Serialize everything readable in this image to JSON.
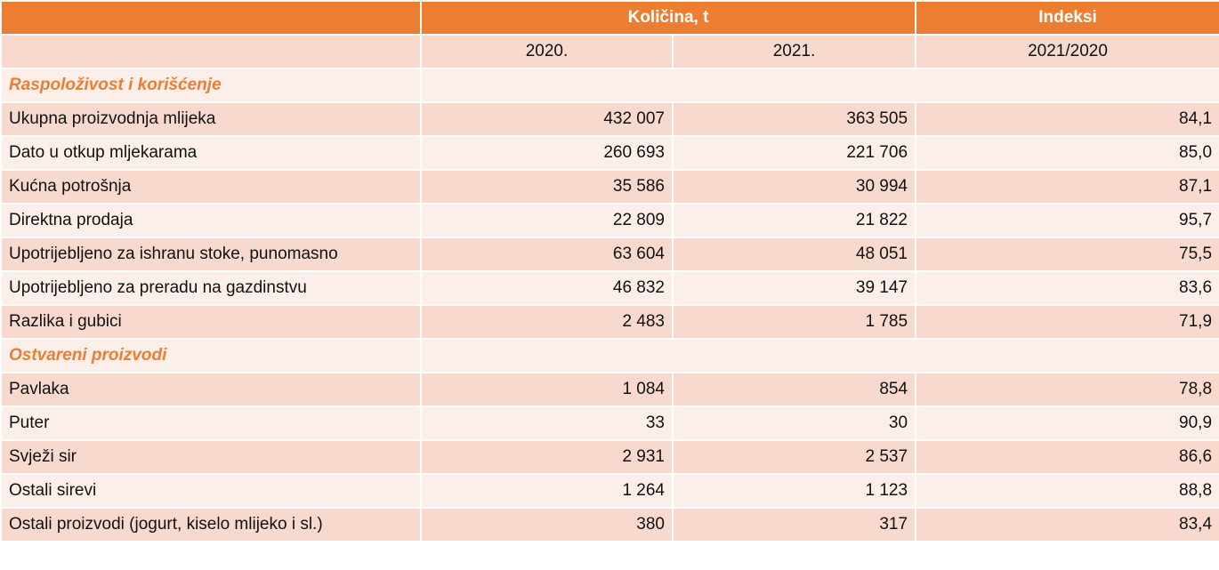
{
  "header": {
    "quantity": "Količina, t",
    "index": "Indeksi",
    "columns": [
      "2020.",
      "2021.",
      "2021/2020"
    ]
  },
  "sections": [
    {
      "title": "Raspoloživost i korišćenje",
      "rows": [
        [
          "Ukupna proizvodnja mlijeka",
          "432 007",
          "363 505",
          "84,1"
        ],
        [
          "Dato u otkup mljekarama",
          "260 693",
          "221 706",
          "85,0"
        ],
        [
          "Kućna potrošnja",
          "35 586",
          "30 994",
          "87,1"
        ],
        [
          "Direktna prodaja",
          "22 809",
          "21 822",
          "95,7"
        ],
        [
          "Upotrijebljeno za ishranu stoke, punomasno",
          "63 604",
          "48 051",
          "75,5"
        ],
        [
          "Upotrijebljeno za preradu na gazdinstvu",
          "46 832",
          "39 147",
          "83,6"
        ],
        [
          "Razlika i gubici",
          "2 483",
          "1 785",
          "71,9"
        ]
      ]
    },
    {
      "title": "Ostvareni proizvodi",
      "rows": [
        [
          "Pavlaka",
          "1 084",
          "854",
          "78,8"
        ],
        [
          "Puter",
          "33",
          "30",
          "90,9"
        ],
        [
          "Svježi sir",
          "2 931",
          "2 537",
          "86,6"
        ],
        [
          "Ostali sirevi",
          "1 264",
          "1 123",
          "88,8"
        ],
        [
          "Ostali proizvodi (jogurt, kiselo mlijeko i sl.)",
          "380",
          "317",
          "83,4"
        ]
      ]
    }
  ]
}
